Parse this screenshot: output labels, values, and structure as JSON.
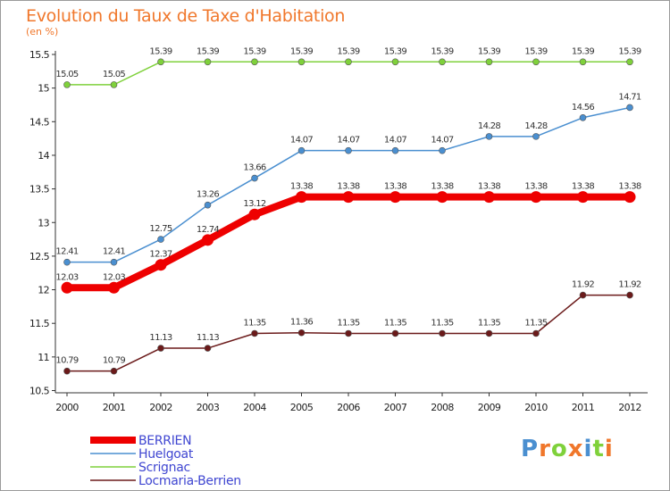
{
  "chart_data": {
    "type": "line",
    "title": "Evolution du Taux de Taxe d'Habitation",
    "subtitle": "(en %)",
    "categories": [
      "2000",
      "2001",
      "2002",
      "2003",
      "2004",
      "2005",
      "2006",
      "2007",
      "2008",
      "2009",
      "2010",
      "2011",
      "2012"
    ],
    "ylim": [
      10.5,
      15.5
    ],
    "yticks": [
      "10.5",
      "11",
      "11.5",
      "12",
      "12.5",
      "13",
      "13.5",
      "14",
      "14.5",
      "15",
      "15.5"
    ],
    "series": [
      {
        "name": "BERRIEN",
        "color": "#ee0000",
        "values": [
          12.03,
          12.03,
          12.37,
          12.74,
          13.12,
          13.38,
          13.38,
          13.38,
          13.38,
          13.38,
          13.38,
          13.38,
          13.38
        ]
      },
      {
        "name": "Huelgoat",
        "color": "#4a8fd0",
        "values": [
          12.41,
          12.41,
          12.75,
          13.26,
          13.66,
          14.07,
          14.07,
          14.07,
          14.07,
          14.28,
          14.28,
          14.56,
          14.71
        ]
      },
      {
        "name": "Scrignac",
        "color": "#7fd13b",
        "values": [
          15.05,
          15.05,
          15.39,
          15.39,
          15.39,
          15.39,
          15.39,
          15.39,
          15.39,
          15.39,
          15.39,
          15.39,
          15.39
        ]
      },
      {
        "name": "Locmaria-Berrien",
        "color": "#6b1a1a",
        "values": [
          10.79,
          10.79,
          11.13,
          11.13,
          11.35,
          11.36,
          11.35,
          11.35,
          11.35,
          11.35,
          11.35,
          11.92,
          11.92
        ]
      }
    ],
    "legend_position": "bottom-left",
    "grid": false
  },
  "logo": {
    "text": "Proxiti",
    "letters": [
      {
        "ch": "P",
        "color": "#4a8fd0"
      },
      {
        "ch": "r",
        "color": "#f0772b"
      },
      {
        "ch": "o",
        "color": "#7fd13b"
      },
      {
        "ch": "x",
        "color": "#f0772b"
      },
      {
        "ch": "i",
        "color": "#4a8fd0"
      },
      {
        "ch": "t",
        "color": "#7fd13b"
      },
      {
        "ch": "i",
        "color": "#f0772b"
      }
    ]
  }
}
